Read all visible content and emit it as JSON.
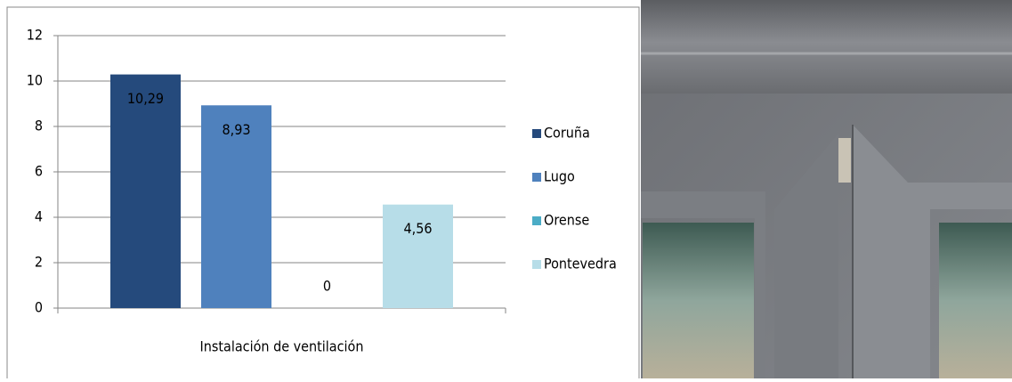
{
  "chart_data": {
    "type": "bar",
    "categories": [
      "Instalación de ventilación"
    ],
    "series": [
      {
        "name": "Coruña",
        "color": "#254a7c",
        "values": [
          10.29
        ],
        "value_labels": [
          "10,29"
        ]
      },
      {
        "name": "Lugo",
        "color": "#4f81bd",
        "values": [
          8.93
        ],
        "value_labels": [
          "8,93"
        ]
      },
      {
        "name": "Orense",
        "color": "#4bacc6",
        "values": [
          0
        ],
        "value_labels": [
          "0"
        ]
      },
      {
        "name": "Pontevedra",
        "color": "#b7dde8",
        "values": [
          4.56
        ],
        "value_labels": [
          "4,56"
        ]
      }
    ],
    "ylim": [
      0,
      12
    ],
    "yticks": [
      0,
      2,
      4,
      6,
      8,
      10,
      12
    ],
    "grid": true,
    "legend": "right"
  }
}
